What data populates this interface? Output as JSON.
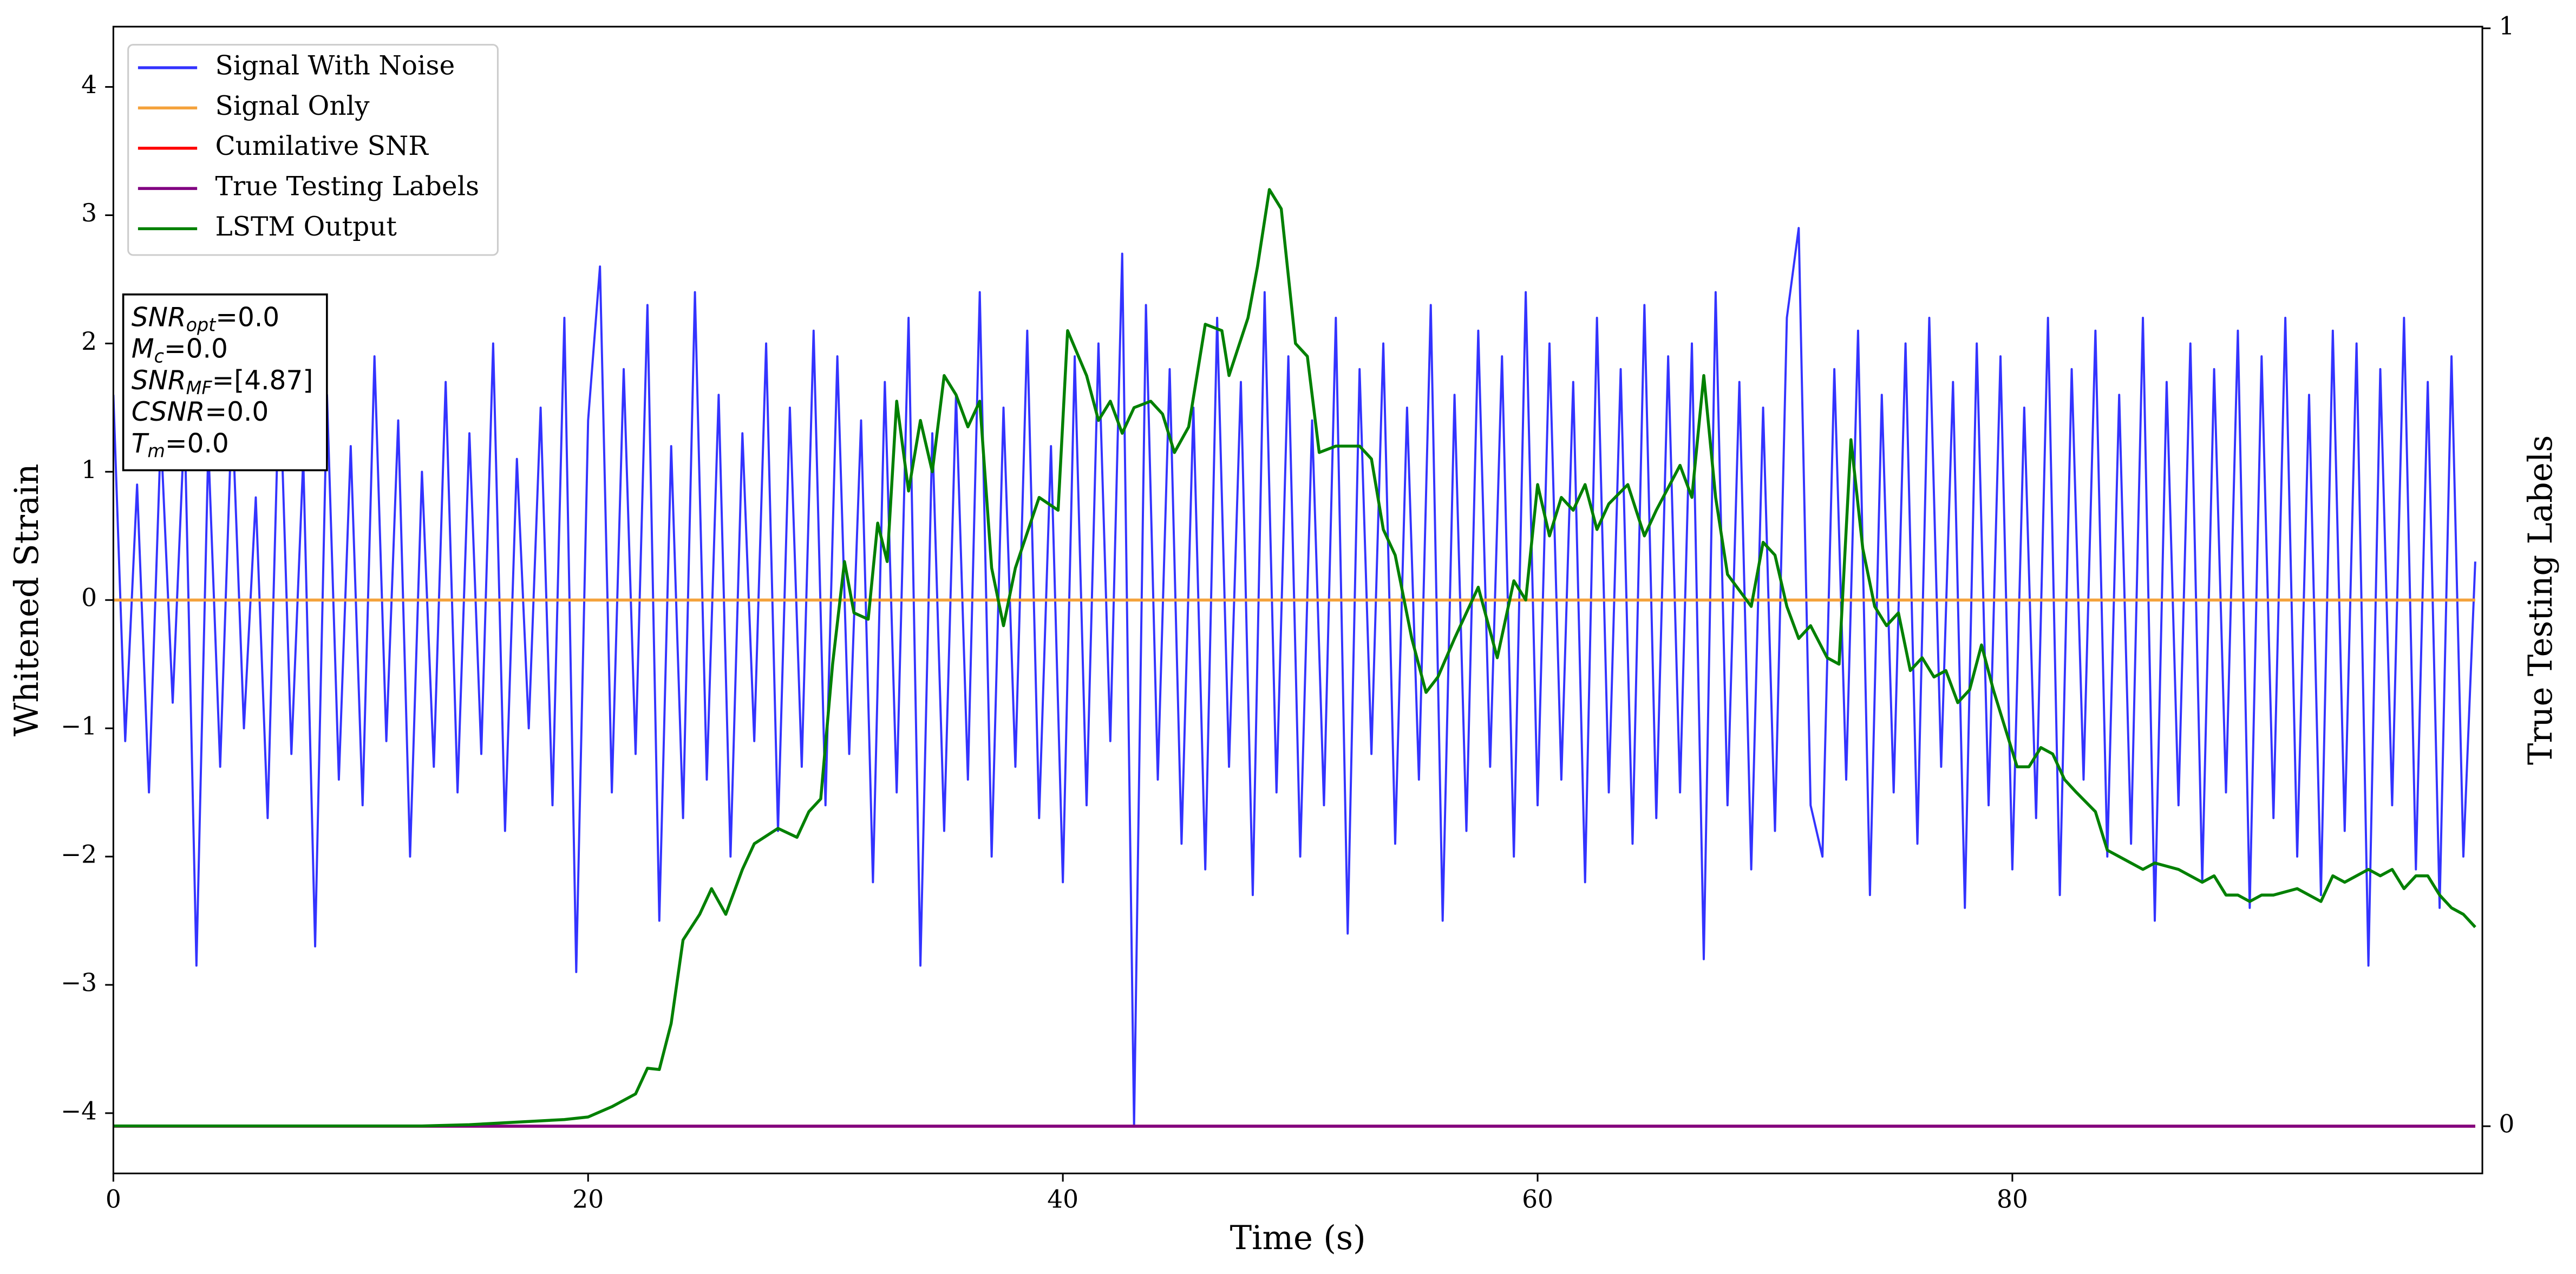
{
  "chart_data": {
    "type": "line",
    "xlabel": "Time (s)",
    "ylabel": "Whitened Strain",
    "y2label": "True Testing Labels",
    "xlim": [
      0,
      99.8
    ],
    "xticks": [
      0,
      20,
      40,
      60,
      80
    ],
    "ylim": [
      -4.47,
      4.47
    ],
    "yticks": [
      {
        "value": -4,
        "label": "−4"
      },
      {
        "value": -3,
        "label": "−3"
      },
      {
        "value": -2,
        "label": "−2"
      },
      {
        "value": -1,
        "label": "−1"
      },
      0,
      1,
      2,
      3,
      4
    ],
    "y2lim": [
      -0.043,
      1.0015
    ],
    "y2ticks": [
      0,
      1
    ],
    "grid": false,
    "legend": "upper left",
    "annotation": [
      {
        "main": "SNR",
        "sub": "opt",
        "rest": "=0.0"
      },
      {
        "main": "M",
        "sub": "c",
        "rest": "=0.0"
      },
      {
        "main": "SNR",
        "sub": "MF",
        "rest": "=[4.87]"
      },
      {
        "main": "CSNR",
        "rest": "=0.0"
      },
      {
        "main": "T",
        "sub": "m",
        "rest": "=0.0"
      }
    ],
    "series": [
      {
        "name": "Signal With Noise",
        "color": "#3333ff",
        "x": [
          0,
          0.5,
          1,
          1.5,
          2,
          2.5,
          3,
          3.5,
          4,
          4.5,
          5,
          5.5,
          6,
          6.5,
          7,
          7.5,
          8,
          8.5,
          9,
          9.5,
          10,
          10.5,
          11,
          11.5,
          12,
          12.5,
          13,
          13.5,
          14,
          14.5,
          15,
          15.5,
          16,
          16.5,
          17,
          17.5,
          18,
          18.5,
          19,
          19.5,
          20,
          20.5,
          21,
          21.5,
          22,
          22.5,
          23,
          23.5,
          24,
          24.5,
          25,
          25.5,
          26,
          26.5,
          27,
          27.5,
          28,
          28.5,
          29,
          29.5,
          30,
          30.5,
          31,
          31.5,
          32,
          32.5,
          33,
          33.5,
          34,
          34.5,
          35,
          35.5,
          36,
          36.5,
          37,
          37.5,
          38,
          38.5,
          39,
          39.5,
          40,
          40.5,
          41,
          41.5,
          42,
          42.5,
          43,
          43.5,
          44,
          44.5,
          45,
          45.5,
          46,
          46.5,
          47,
          47.5,
          48,
          48.5,
          49,
          49.5,
          50,
          50.5,
          51,
          51.5,
          52,
          52.5,
          53,
          53.5,
          54,
          54.5,
          55,
          55.5,
          56,
          56.5,
          57,
          57.5,
          58,
          58.5,
          59,
          59.5,
          60,
          60.5,
          61,
          61.5,
          62,
          62.5,
          63,
          63.5,
          64,
          64.5,
          65,
          65.5,
          66,
          66.5,
          67,
          67.5,
          68,
          68.5,
          69,
          69.5,
          70,
          70.5,
          71,
          71.5,
          72,
          72.5,
          73,
          73.5,
          74,
          74.5,
          75,
          75.5,
          76,
          76.5,
          77,
          77.5,
          78,
          78.5,
          79,
          79.5,
          80,
          80.5,
          81,
          81.5,
          82,
          82.5,
          83,
          83.5,
          84,
          84.5,
          85,
          85.5,
          86,
          86.5,
          87,
          87.5,
          88,
          88.5,
          89,
          89.5,
          90,
          90.5,
          91,
          91.5,
          92,
          92.5,
          93,
          93.5,
          94,
          94.5,
          95,
          95.5,
          96,
          96.5,
          97,
          97.5,
          98,
          98.5,
          99,
          99.5
        ],
        "values": [
          1.6,
          -1.1,
          0.9,
          -1.5,
          1.3,
          -0.8,
          1.4,
          -2.85,
          1.2,
          -1.3,
          1.5,
          -1.0,
          0.8,
          -1.7,
          1.8,
          -1.2,
          1.1,
          -2.7,
          1.6,
          -1.4,
          1.2,
          -1.6,
          1.9,
          -1.1,
          1.4,
          -2.0,
          1.0,
          -1.3,
          1.7,
          -1.5,
          1.3,
          -1.2,
          2.0,
          -1.8,
          1.1,
          -1.0,
          1.5,
          -1.6,
          2.2,
          -2.9,
          1.4,
          2.6,
          -1.5,
          1.8,
          -1.2,
          2.3,
          -2.5,
          1.2,
          -1.7,
          2.4,
          -1.4,
          1.6,
          -2.0,
          1.3,
          -1.1,
          2.0,
          -1.8,
          1.5,
          -1.3,
          2.1,
          -1.6,
          1.9,
          -1.2,
          1.4,
          -2.2,
          1.7,
          -1.5,
          2.2,
          -2.85,
          1.3,
          -1.8,
          1.6,
          -1.4,
          2.4,
          -2.0,
          1.5,
          -1.3,
          2.1,
          -1.7,
          1.2,
          -2.2,
          1.9,
          -1.6,
          2.0,
          -1.1,
          2.7,
          -4.1,
          2.3,
          -1.4,
          1.8,
          -1.9,
          1.5,
          -2.1,
          2.2,
          -1.3,
          1.7,
          -2.3,
          2.4,
          -1.5,
          1.9,
          -2.0,
          1.4,
          -1.6,
          2.2,
          -2.6,
          1.8,
          -1.2,
          2.0,
          -1.9,
          1.5,
          -1.4,
          2.3,
          -2.5,
          1.6,
          -1.8,
          2.1,
          -1.3,
          1.9,
          -2.0,
          2.4,
          -1.6,
          2.0,
          -1.4,
          1.7,
          -2.2,
          2.2,
          -1.5,
          1.8,
          -1.9,
          2.3,
          -1.7,
          1.9,
          -1.5,
          2.0,
          -2.8,
          2.4,
          -1.6,
          1.7,
          -2.1,
          1.5,
          -1.8,
          2.2,
          2.9,
          -1.6,
          -2.0,
          1.8,
          -1.4,
          2.1,
          -2.3,
          1.6,
          -1.5,
          2.0,
          -1.9,
          2.2,
          -1.3,
          1.7,
          -2.4,
          2.0,
          -1.6,
          1.9,
          -2.1,
          1.5,
          -1.7,
          2.2,
          -2.3,
          1.8,
          -1.4,
          2.1,
          -2.0,
          1.6,
          -1.9,
          2.2,
          -2.5,
          1.7,
          -1.6,
          2.0,
          -2.2,
          1.8,
          -1.5,
          2.1,
          -2.4,
          1.9,
          -1.7,
          2.2,
          -2.0,
          1.6,
          -2.3,
          2.1,
          -1.8,
          2.0,
          -2.85,
          1.8,
          -1.6,
          2.2,
          -2.1,
          1.7,
          -2.4,
          1.9,
          -2.0,
          0.3
        ]
      },
      {
        "name": "Signal Only",
        "color": "#f4a23c",
        "x": [
          0,
          99.5
        ],
        "values": [
          0,
          0
        ]
      },
      {
        "name": "Cumilative SNR",
        "color": "#ff0000",
        "axis": "y2",
        "x": [
          0,
          99.5
        ],
        "values": [
          0,
          0
        ]
      },
      {
        "name": "True Testing Labels",
        "color": "#800080",
        "axis": "y2",
        "x": [
          0,
          99.5
        ],
        "values": [
          0,
          0
        ]
      },
      {
        "name": "LSTM Output",
        "color": "#008000",
        "x": [
          0,
          13,
          15,
          17,
          19,
          20,
          21,
          22,
          22.5,
          23,
          23.5,
          24,
          24.7,
          25.2,
          25.8,
          26.5,
          27,
          28,
          28.8,
          29.3,
          29.8,
          30.3,
          30.8,
          31.2,
          31.8,
          32.2,
          32.6,
          33,
          33.5,
          34,
          34.5,
          35,
          35.5,
          36,
          36.5,
          37,
          37.5,
          38,
          39,
          39.8,
          40.2,
          41,
          41.5,
          42,
          42.5,
          43,
          43.7,
          44.2,
          44.7,
          45.3,
          46,
          46.7,
          47,
          47.8,
          48.2,
          48.7,
          49.2,
          49.8,
          50.3,
          50.8,
          51.5,
          52.5,
          53,
          53.5,
          54,
          54.7,
          55.3,
          55.8,
          56.5,
          57.5,
          58.3,
          59,
          59.5,
          60,
          60.5,
          61,
          61.5,
          62,
          62.5,
          63,
          63.8,
          64.5,
          65,
          66,
          66.5,
          67,
          67.5,
          68,
          69,
          69.5,
          70,
          70.5,
          71,
          71.5,
          72.2,
          72.7,
          73.2,
          73.7,
          74.2,
          74.7,
          75.2,
          75.7,
          76.2,
          76.7,
          77.2,
          77.7,
          78.2,
          78.7,
          79.2,
          79.7,
          80.2,
          80.7,
          81.2,
          81.7,
          82.2,
          82.7,
          83.5,
          84,
          84.5,
          85,
          85.5,
          86,
          87,
          88,
          88.5,
          89,
          89.5,
          90,
          90.5,
          91,
          92,
          93,
          93.5,
          94,
          94.5,
          95,
          95.5,
          96,
          96.5,
          97,
          97.5,
          98,
          98.5,
          99,
          99.5
        ],
        "values": [
          -4.1,
          -4.1,
          -4.09,
          -4.07,
          -4.05,
          -4.03,
          -3.95,
          -3.85,
          -3.65,
          -3.66,
          -3.3,
          -2.65,
          -2.45,
          -2.25,
          -2.45,
          -2.1,
          -1.9,
          -1.78,
          -1.85,
          -1.65,
          -1.55,
          -0.5,
          0.3,
          -0.1,
          -0.15,
          0.6,
          0.3,
          1.55,
          0.85,
          1.4,
          1.0,
          1.75,
          1.6,
          1.35,
          1.55,
          0.25,
          -0.2,
          0.25,
          0.8,
          0.7,
          2.1,
          1.75,
          1.4,
          1.55,
          1.3,
          1.5,
          1.55,
          1.45,
          1.15,
          1.35,
          2.15,
          2.1,
          1.75,
          2.2,
          2.6,
          3.2,
          3.05,
          2.0,
          1.9,
          1.15,
          1.2,
          1.2,
          1.1,
          0.55,
          0.35,
          -0.3,
          -0.72,
          -0.6,
          -0.3,
          0.1,
          -0.45,
          0.15,
          0.0,
          0.9,
          0.5,
          0.8,
          0.7,
          0.9,
          0.55,
          0.75,
          0.9,
          0.5,
          0.7,
          1.05,
          0.8,
          1.75,
          0.8,
          0.2,
          -0.05,
          0.45,
          0.35,
          -0.05,
          -0.3,
          -0.2,
          -0.45,
          -0.5,
          1.25,
          0.4,
          -0.05,
          -0.2,
          -0.1,
          -0.55,
          -0.45,
          -0.6,
          -0.55,
          -0.8,
          -0.7,
          -0.35,
          -0.7,
          -1.0,
          -1.3,
          -1.3,
          -1.15,
          -1.2,
          -1.4,
          -1.5,
          -1.65,
          -1.95,
          -2.0,
          -2.05,
          -2.1,
          -2.05,
          -2.1,
          -2.2,
          -2.15,
          -2.3,
          -2.3,
          -2.35,
          -2.3,
          -2.3,
          -2.25,
          -2.35,
          -2.15,
          -2.2,
          -2.15,
          -2.1,
          -2.15,
          -2.1,
          -2.25,
          -2.15,
          -2.15,
          -2.3,
          -2.4,
          -2.45,
          -2.55
        ]
      }
    ]
  }
}
